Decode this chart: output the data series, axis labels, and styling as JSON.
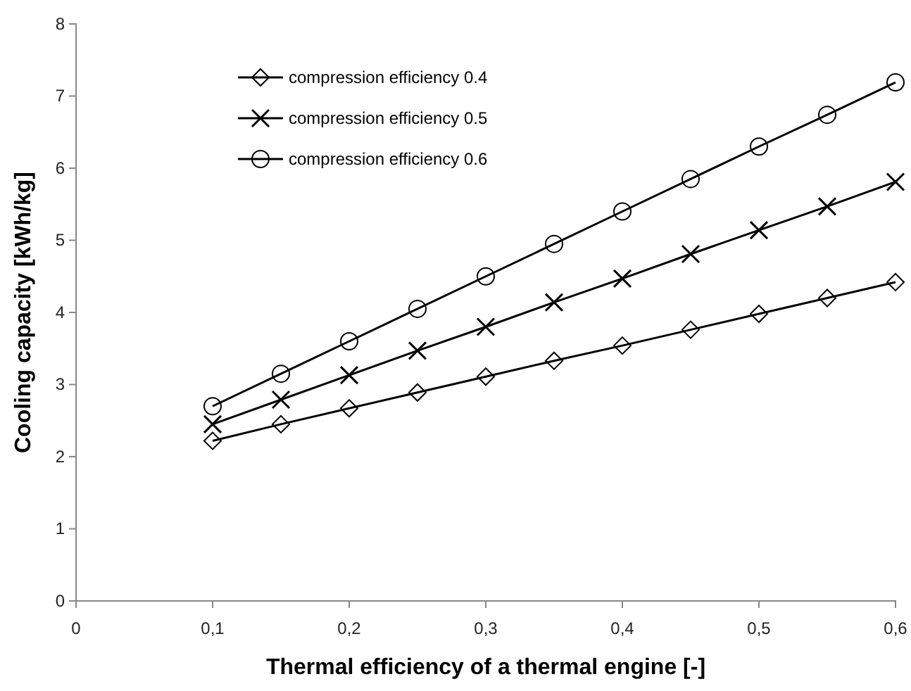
{
  "chart_data": {
    "type": "line",
    "xlabel": "Thermal efficiency of a thermal engine [-]",
    "ylabel": "Cooling capacity [kWh/kg]",
    "x": [
      0.1,
      0.15,
      0.2,
      0.25,
      0.3,
      0.35,
      0.4,
      0.45,
      0.5,
      0.55,
      0.6
    ],
    "series": [
      {
        "name": "compression efficiency 0.4",
        "color": "#000000",
        "marker": "diamond",
        "values": [
          2.22,
          2.45,
          2.67,
          2.89,
          3.11,
          3.33,
          3.54,
          3.76,
          3.98,
          4.2,
          4.42
        ]
      },
      {
        "name": "compression efficiency 0.5",
        "color": "#000000",
        "marker": "cross",
        "values": [
          2.45,
          2.79,
          3.13,
          3.47,
          3.8,
          4.14,
          4.47,
          4.81,
          5.14,
          5.47,
          5.81
        ]
      },
      {
        "name": "compression efficiency 0.6",
        "color": "#000000",
        "marker": "circle",
        "values": [
          2.7,
          3.15,
          3.6,
          4.05,
          4.5,
          4.95,
          5.4,
          5.85,
          6.3,
          6.74,
          7.19
        ]
      }
    ],
    "xlim": [
      0,
      0.6
    ],
    "xticks": [
      0,
      {
        "value": 0.1,
        "label": "0,1"
      },
      {
        "value": 0.2,
        "label": "0,2"
      },
      {
        "value": 0.3,
        "label": "0,3"
      },
      {
        "value": 0.4,
        "label": "0,4"
      },
      {
        "value": 0.5,
        "label": "0,5"
      },
      {
        "value": 0.6,
        "label": "0,6"
      }
    ],
    "ylim": [
      0,
      8
    ],
    "yticks": [
      0,
      1,
      2,
      3,
      4,
      5,
      6,
      7,
      8
    ],
    "legend": "top left",
    "line_style": "solid"
  }
}
